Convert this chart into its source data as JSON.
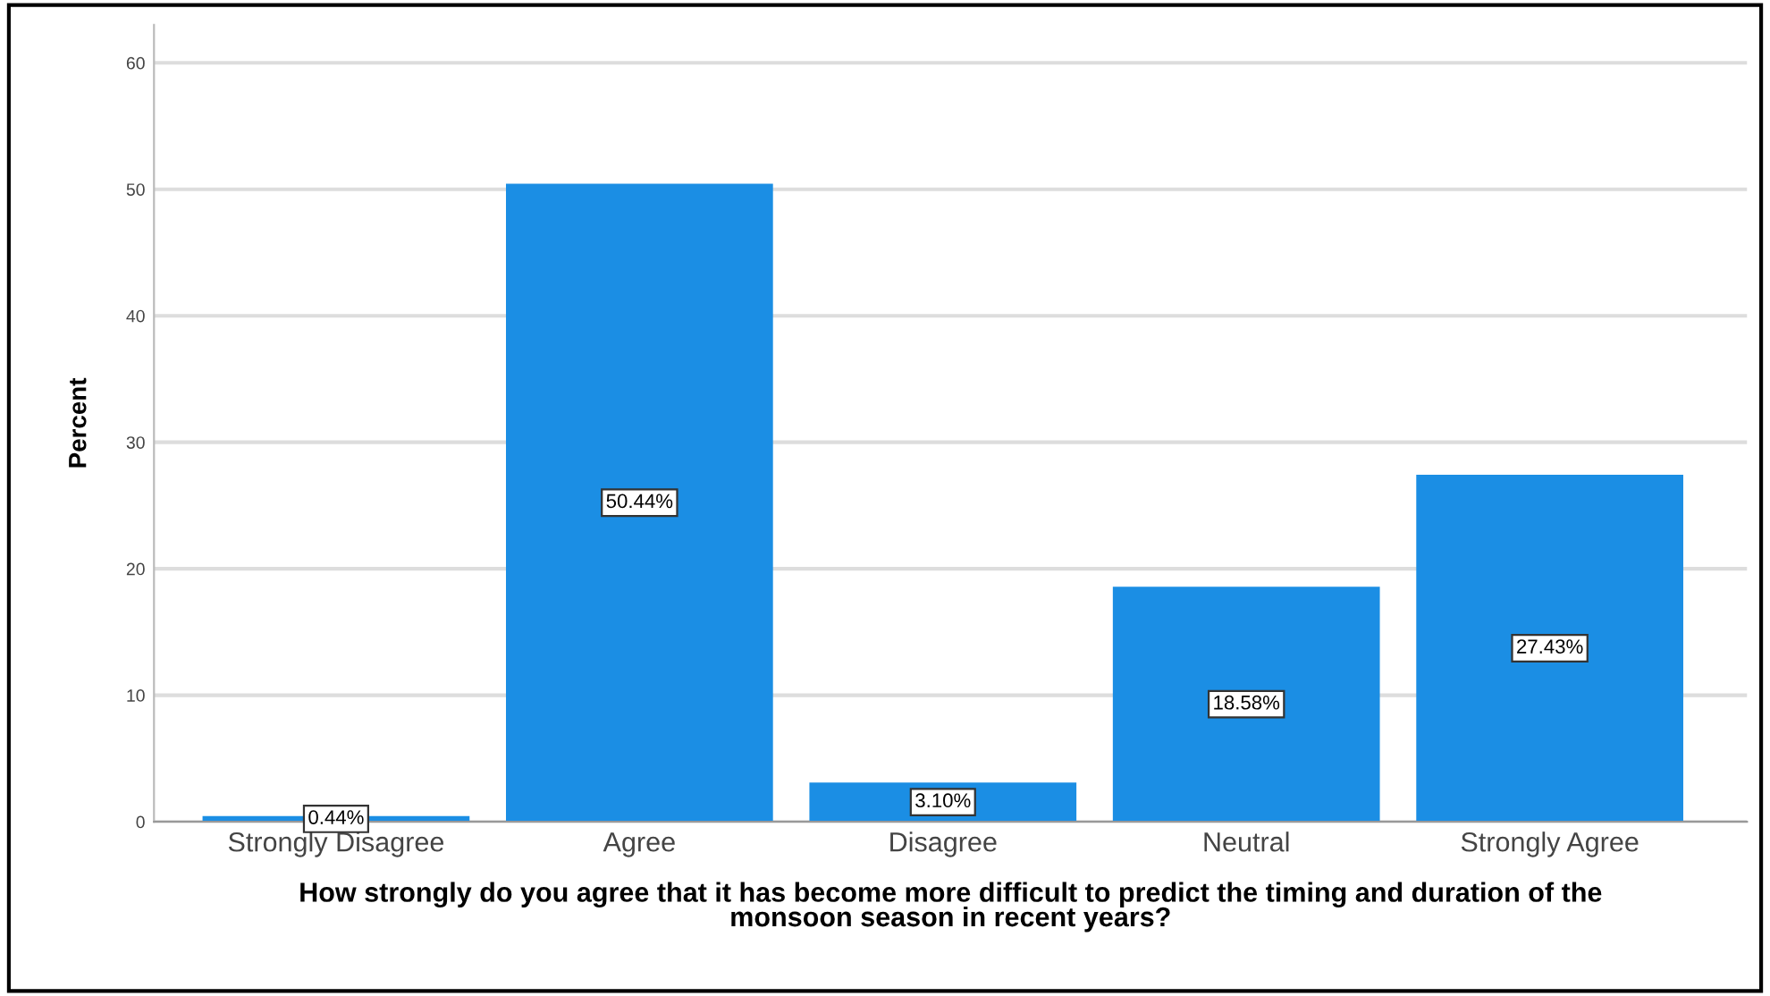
{
  "chart_data": {
    "type": "bar",
    "categories": [
      "Strongly Disagree",
      "Agree",
      "Disagree",
      "Neutral",
      "Strongly Agree"
    ],
    "values": [
      0.44,
      50.44,
      3.1,
      18.58,
      27.43
    ],
    "value_labels": [
      "0.44%",
      "50.44%",
      "3.10%",
      "18.58%",
      "27.43%"
    ],
    "color": "#1b8ee4",
    "ylabel": "Percent",
    "xlabel": "How strongly do you agree that it has become more difficult to predict the timing and duration of the\nmonsoon season in recent years?",
    "ylim": [
      0,
      63
    ],
    "yticks": [
      0,
      10,
      20,
      30,
      40,
      50,
      60
    ],
    "grid": "y"
  }
}
